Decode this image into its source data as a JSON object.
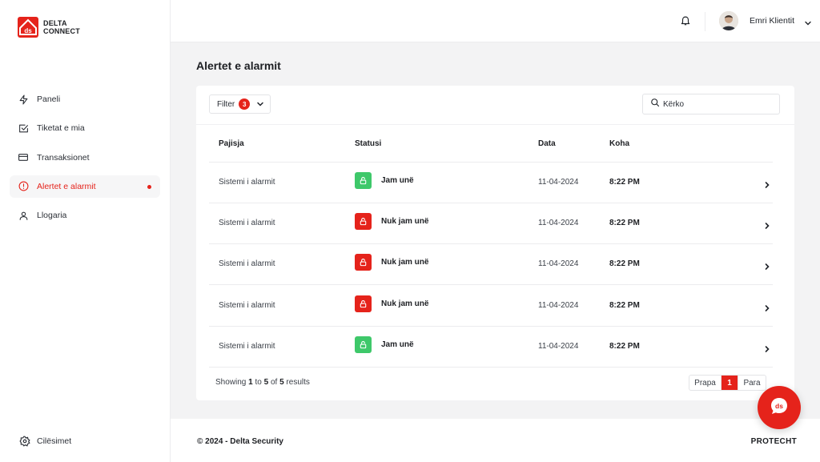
{
  "brand": {
    "line1": "DELTA",
    "line2": "CONNECT",
    "accent": "#e5231b"
  },
  "sidebar": {
    "items": [
      {
        "label": "Paneli",
        "icon": "lightning-icon"
      },
      {
        "label": "Tiketat e mia",
        "icon": "checkbox-icon"
      },
      {
        "label": "Transaksionet",
        "icon": "credit-card-icon"
      },
      {
        "label": "Alertet e alarmit",
        "icon": "alert-circle-icon",
        "active": true
      },
      {
        "label": "Llogaria",
        "icon": "user-icon"
      }
    ],
    "settings_label": "Cilësimet"
  },
  "header": {
    "user_name": "Emri Klientit"
  },
  "page": {
    "title": "Alertet e alarmit"
  },
  "toolbar": {
    "filter_label": "Filter",
    "filter_count": "3",
    "search_value": "Kërko"
  },
  "table": {
    "columns": [
      "Pajisja",
      "Statusi",
      "Data",
      "Koha"
    ],
    "rows": [
      {
        "device": "Sistemi i alarmit",
        "status": "Jam unë",
        "state": "ok",
        "date": "11-04-2024",
        "time": "8:22 PM"
      },
      {
        "device": "Sistemi i alarmit",
        "status": "Nuk jam unë",
        "state": "alert",
        "date": "11-04-2024",
        "time": "8:22 PM"
      },
      {
        "device": "Sistemi i alarmit",
        "status": "Nuk jam unë",
        "state": "alert",
        "date": "11-04-2024",
        "time": "8:22 PM"
      },
      {
        "device": "Sistemi i alarmit",
        "status": "Nuk jam unë",
        "state": "alert",
        "date": "11-04-2024",
        "time": "8:22 PM"
      },
      {
        "device": "Sistemi i alarmit",
        "status": "Jam unë",
        "state": "ok",
        "date": "11-04-2024",
        "time": "8:22 PM"
      }
    ],
    "status_colors": {
      "ok": "#3ec86a",
      "alert": "#e5231b"
    }
  },
  "pagination": {
    "showing_prefix": "Showing",
    "from": "1",
    "to_word": "to",
    "to": "5",
    "of_word": "of",
    "total": "5",
    "results_word": "results",
    "prev_label": "Prapa",
    "current_page": "1",
    "next_label": "Para"
  },
  "footer": {
    "copyright": "© 2024 - Delta Security",
    "brand": "PROTECHT"
  }
}
